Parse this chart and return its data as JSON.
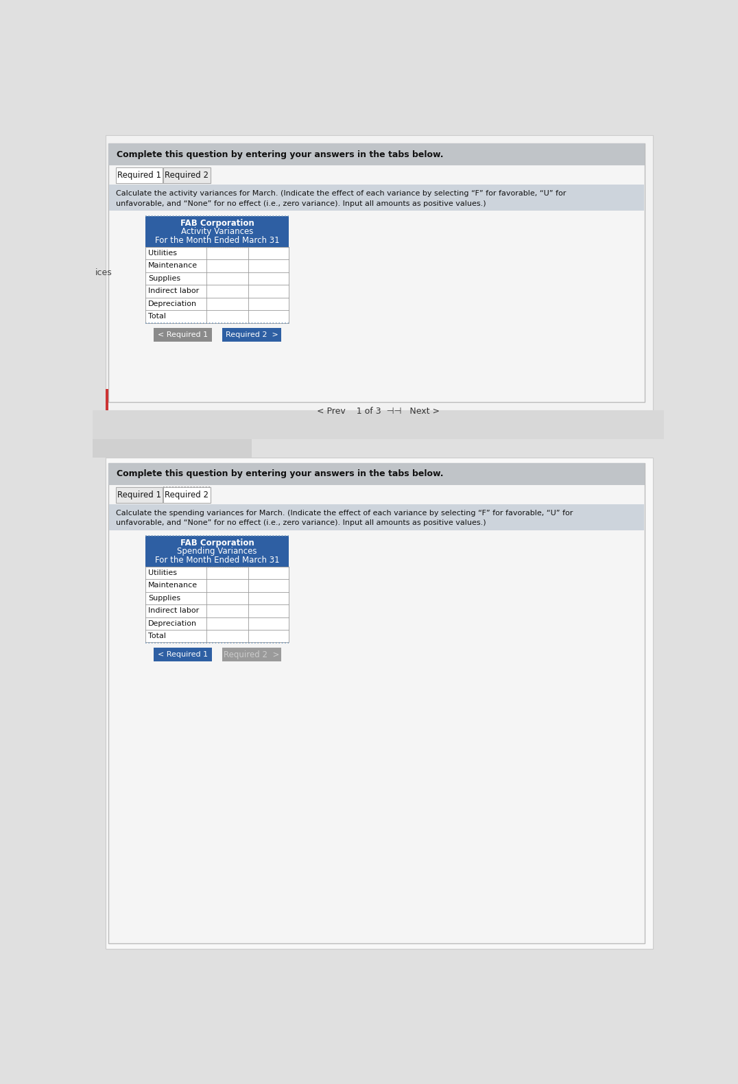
{
  "page_bg": "#e8e8e8",
  "panel1": {
    "header_text": "Complete this question by entering your answers in the tabs below.",
    "tab1_label": "Required 1",
    "tab2_label": "Required 2",
    "instruction_text1": "Calculate the activity variances for March. (Indicate the effect of each variance by selecting “F” for favorable, “U” for",
    "instruction_text2": "unfavorable, and “None” for no effect (i.e., zero variance). Input all amounts as positive values.)",
    "table_header_lines": [
      "FAB Corporation",
      "Activity Variances",
      "For the Month Ended March 31"
    ],
    "rows": [
      "Utilities",
      "Maintenance",
      "Supplies",
      "Indirect labor",
      "Depreciation",
      "Total"
    ],
    "btn1_label": "< Required 1",
    "btn2_label": "Required 2  >"
  },
  "panel2": {
    "header_text": "Complete this question by entering your answers in the tabs below.",
    "tab1_label": "Required 1",
    "tab2_label": "Required 2",
    "instruction_text1": "Calculate the spending variances for March. (Indicate the effect of each variance by selecting “F” for favorable, “U” for",
    "instruction_text2": "unfavorable, and “None” for no effect (i.e., zero variance). Input all amounts as positive values.)",
    "table_header_lines": [
      "FAB Corporation",
      "Spending Variances",
      "For the Month Ended March 31"
    ],
    "rows": [
      "Utilities",
      "Maintenance",
      "Supplies",
      "Indirect labor",
      "Depreciation",
      "Total"
    ],
    "btn1_label": "< Required 1",
    "btn2_label": "Required 2  >"
  },
  "colors": {
    "page_bg": "#e0e0e0",
    "card_bg": "#f5f5f5",
    "header_bar": "#c0c4c8",
    "tab_active": "#ffffff",
    "tab_inactive": "#e8e8e8",
    "instruction_bg": "#cdd4dc",
    "table_header_blue": "#2e5fa3",
    "table_row_bg": "#ffffff",
    "table_border": "#999999",
    "btn_blue": "#2e5fa3",
    "btn_grey": "#8a8a8a",
    "btn_grey2": "#9a9a9a",
    "nav_bar_bg": "#f0f0f0",
    "white_area": "#f8f8f8",
    "text_dark": "#111111",
    "text_white": "#ffffff",
    "text_grey": "#cccccc",
    "left_bar": "#cc3333"
  }
}
